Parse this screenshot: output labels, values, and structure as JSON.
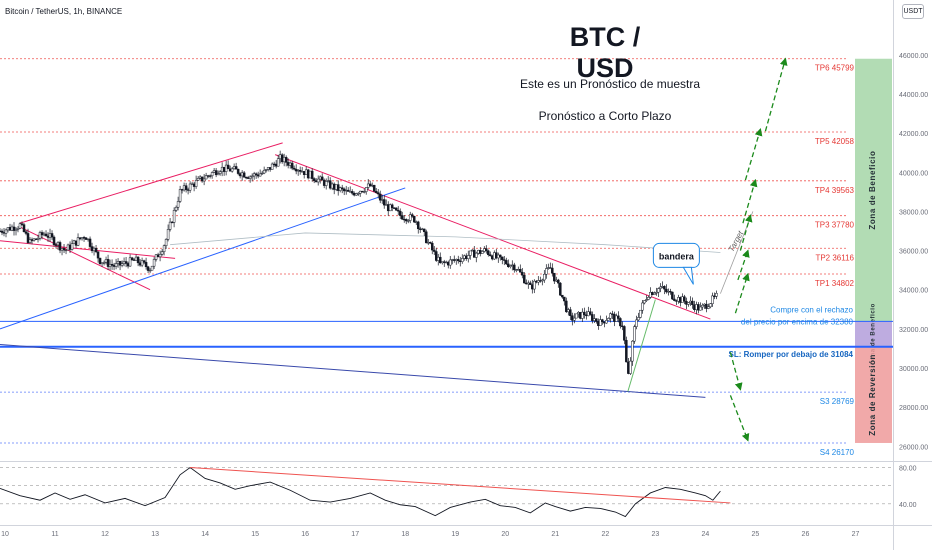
{
  "symbol": "Bitcoin / TetherUS, 1h, BINANCE",
  "currency_button": "USDT",
  "title": "BTC / USD",
  "notes": [
    "Este es un Pronóstico de muestra",
    "Pronóstico a Corto Plazo"
  ],
  "colors": {
    "up": "#26a69a",
    "down": "#ef5350",
    "candle": "#131722",
    "tp_line": "#ef5350",
    "tp_text": "#e53935",
    "support_text": "#1e88e5",
    "blue_line": "#2962ff",
    "channel_red": "#e91e63",
    "arrow": "#1b8a1b",
    "zone_profit": "#a5d6a7",
    "zone_buy": "#b39ddb",
    "zone_reversal": "#ef9a9a"
  },
  "chart_data": [
    {
      "type": "candlestick",
      "title": "",
      "y_ticks": [
        26000,
        28000,
        30000,
        32000,
        34000,
        36000,
        38000,
        40000,
        42000,
        44000,
        46000
      ],
      "y_tick_labels": [
        "26000.00",
        "28000.00",
        "30000.00",
        "32000.00",
        "34000.00",
        "36000.00",
        "38000.00",
        "40000.00",
        "42000.00",
        "44000.00",
        "46000.00"
      ],
      "ylim": [
        25300,
        48800
      ],
      "x_ticks": [
        "10",
        "11",
        "12",
        "13",
        "14",
        "15",
        "16",
        "17",
        "18",
        "19",
        "20",
        "21",
        "22",
        "23",
        "24",
        "25",
        "26",
        "27"
      ],
      "x_values": [
        10,
        11,
        12,
        13,
        14,
        15,
        16,
        17,
        18,
        19,
        20,
        21,
        22,
        23,
        24,
        25,
        26,
        27
      ],
      "xlim": [
        9.9,
        27.75
      ],
      "price_path": [
        [
          9.9,
          37000
        ],
        [
          10.3,
          37300
        ],
        [
          10.5,
          36400
        ],
        [
          10.8,
          36900
        ],
        [
          11.2,
          36000
        ],
        [
          11.6,
          36800
        ],
        [
          11.9,
          35500
        ],
        [
          12.2,
          35200
        ],
        [
          12.6,
          35500
        ],
        [
          12.9,
          35100
        ],
        [
          13.2,
          36400
        ],
        [
          13.5,
          39000
        ],
        [
          13.9,
          39600
        ],
        [
          14.3,
          40200
        ],
        [
          14.6,
          40100
        ],
        [
          14.9,
          39800
        ],
        [
          15.2,
          40000
        ],
        [
          15.5,
          40700
        ],
        [
          15.8,
          40300
        ],
        [
          16.2,
          39700
        ],
        [
          16.6,
          39200
        ],
        [
          16.9,
          38900
        ],
        [
          17.3,
          39300
        ],
        [
          17.6,
          38300
        ],
        [
          17.9,
          37800
        ],
        [
          18.2,
          37600
        ],
        [
          18.5,
          36200
        ],
        [
          18.7,
          35300
        ],
        [
          19.0,
          35500
        ],
        [
          19.3,
          35800
        ],
        [
          19.6,
          36000
        ],
        [
          19.9,
          35500
        ],
        [
          20.2,
          35200
        ],
        [
          20.5,
          34100
        ],
        [
          20.7,
          34600
        ],
        [
          20.9,
          35100
        ],
        [
          21.1,
          33900
        ],
        [
          21.3,
          32500
        ],
        [
          21.6,
          32800
        ],
        [
          21.9,
          32300
        ],
        [
          22.1,
          32700
        ],
        [
          22.35,
          32200
        ],
        [
          22.45,
          29400
        ],
        [
          22.6,
          32400
        ],
        [
          22.85,
          33800
        ],
        [
          23.1,
          34100
        ],
        [
          23.4,
          33600
        ],
        [
          23.7,
          33300
        ],
        [
          23.9,
          33000
        ],
        [
          24.1,
          33400
        ],
        [
          24.25,
          33700
        ]
      ],
      "levels": [
        {
          "label": "TP6 45799",
          "value": 45799,
          "kind": "tp"
        },
        {
          "label": "TP5 42058",
          "value": 42058,
          "kind": "tp"
        },
        {
          "label": "TP4 39563",
          "value": 39563,
          "kind": "tp"
        },
        {
          "label": "TP3 37780",
          "value": 37780,
          "kind": "tp"
        },
        {
          "label": "TP2 36116",
          "value": 36116,
          "kind": "tp"
        },
        {
          "label": "TP1 34802",
          "value": 34802,
          "kind": "tp"
        },
        {
          "label": "S3 28769",
          "value": 28769,
          "kind": "support"
        },
        {
          "label": "S4 26170",
          "value": 26170,
          "kind": "support"
        }
      ],
      "buy_level": 32380,
      "buy_text": [
        "Compre con el rechazo",
        "del precio por encima de 32380"
      ],
      "stop_level": 31084,
      "stop_text": "SL: Romper por debajo de 31084",
      "flag_label": "bandera",
      "target_label": "Target",
      "zones": [
        {
          "label": "Zona de Beneficio",
          "from": 32380,
          "to": 45799,
          "kind": "profit"
        },
        {
          "label": "Zona de Beneficio",
          "from": 31084,
          "to": 32380,
          "kind": "buy"
        },
        {
          "label": "Zona de Reversión",
          "from": 26170,
          "to": 31084,
          "kind": "reversal"
        }
      ]
    },
    {
      "type": "line",
      "title": "",
      "y_ticks": [
        40,
        80
      ],
      "y_tick_labels": [
        "40.00",
        "80.00"
      ],
      "ylim": [
        20,
        85
      ],
      "series": [
        {
          "points": [
            [
              9.9,
              57
            ],
            [
              10.3,
              49
            ],
            [
              10.7,
              44
            ],
            [
              11.0,
              52
            ],
            [
              11.3,
              45
            ],
            [
              11.6,
              50
            ],
            [
              12.0,
              41
            ],
            [
              12.4,
              46
            ],
            [
              12.8,
              38
            ],
            [
              13.2,
              47
            ],
            [
              13.5,
              72
            ],
            [
              13.7,
              80
            ],
            [
              14.0,
              68
            ],
            [
              14.3,
              63
            ],
            [
              14.6,
              56
            ],
            [
              14.9,
              60
            ],
            [
              15.3,
              64
            ],
            [
              15.7,
              55
            ],
            [
              16.1,
              44
            ],
            [
              16.5,
              42
            ],
            [
              16.9,
              46
            ],
            [
              17.3,
              52
            ],
            [
              17.6,
              44
            ],
            [
              17.9,
              39
            ],
            [
              18.2,
              37
            ],
            [
              18.6,
              27
            ],
            [
              18.9,
              36
            ],
            [
              19.3,
              42
            ],
            [
              19.6,
              45
            ],
            [
              19.9,
              38
            ],
            [
              20.2,
              36
            ],
            [
              20.5,
              30
            ],
            [
              20.8,
              41
            ],
            [
              21.0,
              37
            ],
            [
              21.3,
              32
            ],
            [
              21.6,
              36
            ],
            [
              21.9,
              35
            ],
            [
              22.2,
              31
            ],
            [
              22.4,
              26
            ],
            [
              22.6,
              40
            ],
            [
              22.9,
              52
            ],
            [
              23.2,
              58
            ],
            [
              23.5,
              56
            ],
            [
              23.8,
              52
            ],
            [
              24.0,
              49
            ],
            [
              24.15,
              44
            ],
            [
              24.3,
              54
            ]
          ]
        }
      ]
    }
  ]
}
